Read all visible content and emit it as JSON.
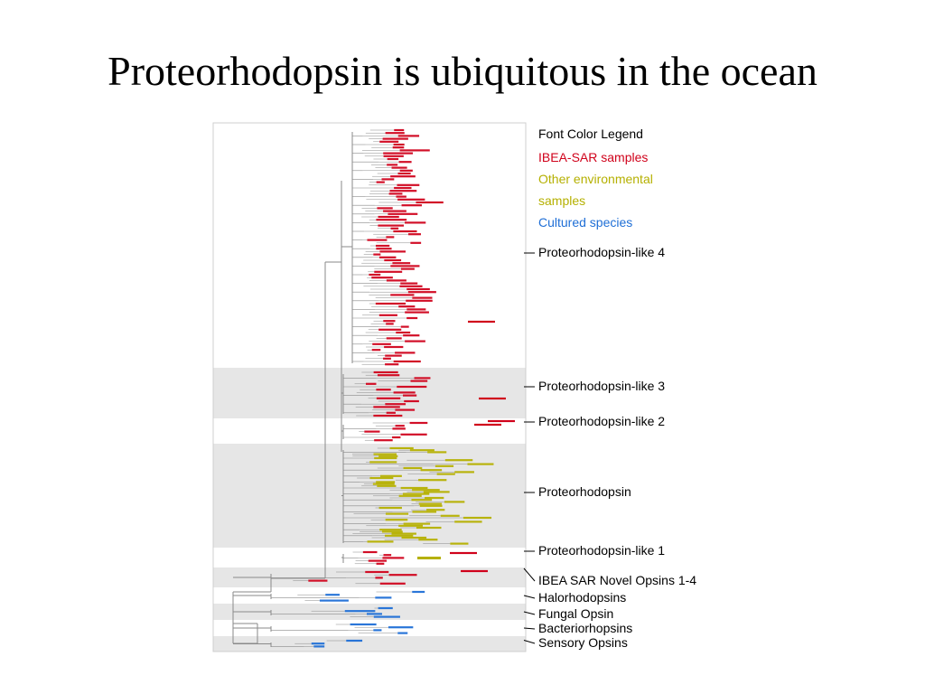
{
  "slide": {
    "title": "Proteorhodopsin is ubiquitous in the ocean"
  },
  "legend": {
    "heading": "Font Color Legend",
    "items": [
      {
        "lines": [
          "IBEA-SAR samples"
        ],
        "color": "#d0021b"
      },
      {
        "lines": [
          "Other environmental",
          "samples"
        ],
        "color": "#b5b000"
      },
      {
        "lines": [
          "Cultured species"
        ],
        "color": "#1f6fd6"
      }
    ]
  },
  "clades": [
    {
      "label": "Proteorhodopsin-like 4",
      "band": "white"
    },
    {
      "label": "Proteorhodopsin-like 3",
      "band": "gray"
    },
    {
      "label": "Proteorhodopsin-like 2",
      "band": "white"
    },
    {
      "label": "Proteorhodopsin",
      "band": "gray"
    },
    {
      "label": "Proteorhodopsin-like 1",
      "band": "white"
    },
    {
      "label": "IBEA SAR Novel Opsins 1-4",
      "band": "gray"
    },
    {
      "label": "Halorhodopsins",
      "band": "white"
    },
    {
      "label": "Fungal Opsin",
      "band": "gray"
    },
    {
      "label": "Bacteriorhopsins",
      "band": "white"
    },
    {
      "label": "Sensory Opsins",
      "band": "gray"
    }
  ],
  "colors": {
    "ibea": "#d0021b",
    "environmental": "#b5b000",
    "cultured": "#1f6fd6",
    "band_gray": "#e6e6e6",
    "branch": "#8a8a8a"
  }
}
